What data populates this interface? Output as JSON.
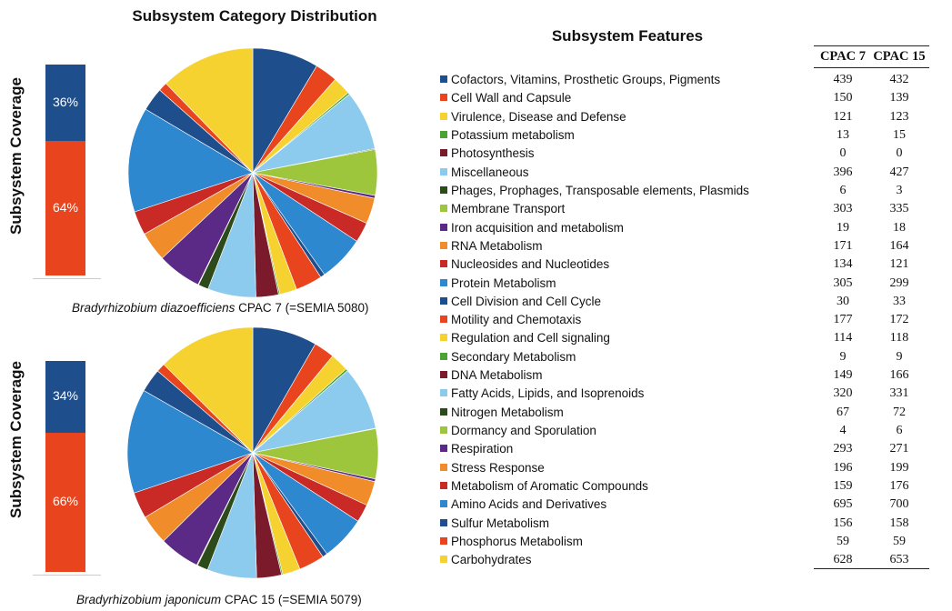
{
  "titles": {
    "distribution": "Subsystem Category Distribution",
    "features": "Subsystem Features"
  },
  "coverage": {
    "label": "Subsystem Coverage",
    "colors": {
      "in": "#1f4e8c",
      "out": "#e8451e"
    },
    "charts": [
      {
        "in_percent": 36,
        "out_percent": 64,
        "in_label": "36%",
        "out_label": "64%"
      },
      {
        "in_percent": 34,
        "out_percent": 66,
        "in_label": "34%",
        "out_label": "66%"
      }
    ]
  },
  "captions": {
    "top": {
      "species": "Bradyrhizobium diazoefficiens",
      "strain": " CPAC 7 (=SEMIA 5080)"
    },
    "bottom": {
      "species": "Bradyrhizobium japonicum",
      "strain": " CPAC 15 (=SEMIA 5079)"
    }
  },
  "table": {
    "col1": "CPAC 7",
    "col2": "CPAC 15"
  },
  "chart_data": {
    "type": "pie",
    "categories": [
      "Cofactors, Vitamins, Prosthetic Groups, Pigments",
      "Cell Wall and Capsule",
      "Virulence, Disease and Defense",
      "Potassium metabolism",
      "Photosynthesis",
      "Miscellaneous",
      "Phages, Prophages, Transposable elements, Plasmids",
      "Membrane Transport",
      "Iron acquisition and metabolism",
      "RNA Metabolism",
      "Nucleosides and Nucleotides",
      "Protein Metabolism",
      "Cell Division and Cell Cycle",
      "Motility and Chemotaxis",
      "Regulation and Cell signaling",
      "Secondary Metabolism",
      "DNA Metabolism",
      "Fatty Acids, Lipids, and Isoprenoids",
      "Nitrogen Metabolism",
      "Dormancy and Sporulation",
      "Respiration",
      "Stress Response",
      "Metabolism of Aromatic Compounds",
      "Amino Acids and Derivatives",
      "Sulfur Metabolism",
      "Phosphorus Metabolism",
      "Carbohydrates"
    ],
    "colors": [
      "#1f4e8c",
      "#e8451e",
      "#f5d22f",
      "#4aa332",
      "#7a1a2a",
      "#8ccbee",
      "#2c4a1a",
      "#9dc63c",
      "#5a2a86",
      "#f08c2a",
      "#c92a26",
      "#2e88d0",
      "#1f4e8c",
      "#e8451e",
      "#f5d22f",
      "#4aa332",
      "#7a1a2a",
      "#8ccbee",
      "#2c4a1a",
      "#9dc63c",
      "#5a2a86",
      "#f08c2a",
      "#c92a26",
      "#2e88d0",
      "#1f4e8c",
      "#e8451e",
      "#f5d22f"
    ],
    "series": [
      {
        "name": "CPAC 7",
        "values": [
          439,
          150,
          121,
          13,
          0,
          396,
          6,
          303,
          19,
          171,
          134,
          305,
          30,
          177,
          114,
          9,
          149,
          320,
          67,
          4,
          293,
          196,
          159,
          695,
          156,
          59,
          628
        ]
      },
      {
        "name": "CPAC 15",
        "values": [
          432,
          139,
          123,
          15,
          0,
          427,
          3,
          335,
          18,
          164,
          121,
          299,
          33,
          172,
          118,
          9,
          166,
          331,
          72,
          6,
          271,
          199,
          176,
          700,
          158,
          59,
          653
        ]
      }
    ]
  }
}
